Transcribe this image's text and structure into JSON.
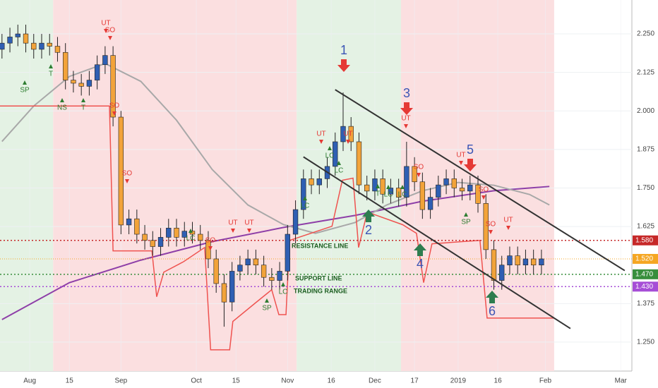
{
  "chart_data": {
    "type": "candlestick",
    "xlim": [
      -7.5,
      151.8
    ],
    "ylim": [
      1.156,
      2.36
    ],
    "xticks": [
      {
        "value": 0,
        "label": "Aug"
      },
      {
        "value": 10,
        "label": "15"
      },
      {
        "value": 23,
        "label": "Sep"
      },
      {
        "value": 42,
        "label": "Oct"
      },
      {
        "value": 52,
        "label": "15"
      },
      {
        "value": 65,
        "label": "Nov"
      },
      {
        "value": 76,
        "label": "16"
      },
      {
        "value": 87,
        "label": "Dec"
      },
      {
        "value": 97,
        "label": "17"
      },
      {
        "value": 108,
        "label": "2019"
      },
      {
        "value": 118,
        "label": "16"
      },
      {
        "value": 130,
        "label": "Feb"
      },
      {
        "value": 149,
        "label": "Mar"
      }
    ],
    "yticks": [
      {
        "value": 1.25,
        "label": "1.250"
      },
      {
        "value": 1.375,
        "label": "1.375"
      },
      {
        "value": 1.625,
        "label": "1.625"
      },
      {
        "value": 1.75,
        "label": "1.750"
      },
      {
        "value": 1.875,
        "label": "1.875"
      },
      {
        "value": 2.0,
        "label": "2.000"
      },
      {
        "value": 2.125,
        "label": "2.125"
      },
      {
        "value": 2.25,
        "label": "2.250"
      }
    ],
    "up_color": "#2f5fb3",
    "down_color": "#f2a33a",
    "x": [
      -7,
      -5,
      -3,
      -1,
      1,
      3,
      5,
      7,
      9,
      11,
      13,
      15,
      17,
      19,
      21,
      23,
      25,
      27,
      29,
      31,
      33,
      35,
      37,
      39,
      41,
      43,
      45,
      47,
      49,
      51,
      53,
      55,
      57,
      59,
      61,
      63,
      65,
      67,
      69,
      71,
      73,
      75,
      77,
      79,
      81,
      83,
      85,
      87,
      89,
      91,
      93,
      95,
      97,
      99,
      101,
      103,
      105,
      107,
      109,
      111,
      113,
      115,
      117,
      119,
      121,
      123,
      125,
      127,
      129
    ],
    "open": [
      2.2,
      2.22,
      2.24,
      2.25,
      2.22,
      2.2,
      2.22,
      2.21,
      2.19,
      2.1,
      2.09,
      2.08,
      2.1,
      2.15,
      2.18,
      1.98,
      1.63,
      1.65,
      1.6,
      1.58,
      1.56,
      1.59,
      1.62,
      1.59,
      1.61,
      1.6,
      1.58,
      1.52,
      1.44,
      1.38,
      1.48,
      1.5,
      1.52,
      1.5,
      1.46,
      1.45,
      1.48,
      1.6,
      1.68,
      1.78,
      1.76,
      1.78,
      1.82,
      1.9,
      1.95,
      1.9,
      1.76,
      1.74,
      1.78,
      1.73,
      1.75,
      1.72,
      1.82,
      1.77,
      1.68,
      1.72,
      1.76,
      1.78,
      1.75,
      1.74,
      1.76,
      1.7,
      1.55,
      1.45,
      1.5,
      1.53,
      1.5,
      1.52,
      1.5
    ],
    "high": [
      2.25,
      2.27,
      2.28,
      2.28,
      2.25,
      2.25,
      2.25,
      2.24,
      2.22,
      2.13,
      2.12,
      2.13,
      2.18,
      2.21,
      2.21,
      2.0,
      1.68,
      1.68,
      1.63,
      1.61,
      1.62,
      1.65,
      1.65,
      1.64,
      1.64,
      1.63,
      1.61,
      1.55,
      1.47,
      1.51,
      1.53,
      1.55,
      1.55,
      1.53,
      1.49,
      1.51,
      1.63,
      1.71,
      1.81,
      1.81,
      1.81,
      1.85,
      1.93,
      2.06,
      1.98,
      1.93,
      1.79,
      1.81,
      1.81,
      1.78,
      1.78,
      1.9,
      1.85,
      1.8,
      1.75,
      1.79,
      1.81,
      1.81,
      1.78,
      1.79,
      1.79,
      1.73,
      1.58,
      1.53,
      1.56,
      1.56,
      1.55,
      1.55,
      1.55
    ],
    "low": [
      2.17,
      2.19,
      2.21,
      2.19,
      2.17,
      2.17,
      2.18,
      2.16,
      2.07,
      2.06,
      2.05,
      2.05,
      2.07,
      2.12,
      1.95,
      1.6,
      1.6,
      1.57,
      1.55,
      1.53,
      1.53,
      1.56,
      1.56,
      1.56,
      1.57,
      1.55,
      1.49,
      1.41,
      1.3,
      1.35,
      1.45,
      1.47,
      1.47,
      1.43,
      1.42,
      1.42,
      1.45,
      1.57,
      1.65,
      1.73,
      1.73,
      1.75,
      1.79,
      1.87,
      1.87,
      1.73,
      1.71,
      1.71,
      1.7,
      1.7,
      1.69,
      1.69,
      1.74,
      1.65,
      1.65,
      1.69,
      1.73,
      1.72,
      1.71,
      1.71,
      1.67,
      1.52,
      1.42,
      1.42,
      1.47,
      1.47,
      1.47,
      1.47,
      1.47
    ],
    "close": [
      2.22,
      2.24,
      2.25,
      2.22,
      2.2,
      2.22,
      2.21,
      2.19,
      2.1,
      2.09,
      2.08,
      2.1,
      2.15,
      2.18,
      1.98,
      1.63,
      1.65,
      1.6,
      1.58,
      1.56,
      1.59,
      1.62,
      1.59,
      1.61,
      1.6,
      1.58,
      1.52,
      1.44,
      1.38,
      1.48,
      1.5,
      1.52,
      1.5,
      1.46,
      1.45,
      1.48,
      1.6,
      1.68,
      1.78,
      1.76,
      1.78,
      1.82,
      1.9,
      1.95,
      1.9,
      1.76,
      1.74,
      1.78,
      1.73,
      1.75,
      1.72,
      1.82,
      1.77,
      1.68,
      1.72,
      1.76,
      1.78,
      1.75,
      1.74,
      1.76,
      1.7,
      1.55,
      1.45,
      1.5,
      1.53,
      1.5,
      1.52,
      1.5,
      1.52
    ],
    "zones": [
      {
        "start": -7.5,
        "end": 5.9,
        "color": "#e4f2e4"
      },
      {
        "start": 5.9,
        "end": 67.3,
        "color": "#fbdfe0"
      },
      {
        "start": 67.3,
        "end": 93.6,
        "color": "#e4f2e4"
      },
      {
        "start": 93.6,
        "end": 132.2,
        "color": "#fbdfe0"
      }
    ],
    "lines": [
      {
        "color": "#8e3fa8",
        "x": [
          -7,
          10,
          28,
          46,
          64,
          82,
          99,
          117,
          131
        ],
        "y": [
          1.323,
          1.443,
          1.516,
          1.576,
          1.622,
          1.661,
          1.707,
          1.741,
          1.755
        ]
      },
      {
        "color": "#a8a8a8",
        "x": [
          -7,
          1,
          10,
          19,
          28,
          37,
          46,
          55,
          64,
          72,
          82,
          90,
          99,
          108,
          117,
          126,
          131
        ],
        "y": [
          1.901,
          2.016,
          2.112,
          2.154,
          2.096,
          1.97,
          1.81,
          1.695,
          1.631,
          1.603,
          1.638,
          1.695,
          1.741,
          1.768,
          1.759,
          1.729,
          1.695
        ]
      },
      {
        "color": "#ef5350",
        "x": [
          -7.5,
          20.1,
          21.0,
          30.8,
          32.0,
          33.8,
          38.8,
          44.1,
          45.6,
          50.4,
          51.2,
          56.6,
          61.0,
          62.8,
          64.6,
          65.5,
          76.2,
          78.8,
          81.5,
          82.9,
          85.1,
          94.0,
          97.5,
          99.3,
          101.4,
          113.5,
          115.3,
          132.2
        ],
        "y": [
          2.016,
          2.016,
          1.546,
          1.546,
          1.397,
          1.477,
          1.511,
          1.557,
          1.225,
          1.225,
          1.317,
          1.374,
          1.42,
          1.339,
          1.339,
          1.58,
          1.626,
          1.775,
          1.782,
          1.557,
          1.672,
          1.631,
          1.603,
          1.443,
          1.569,
          1.58,
          1.328,
          1.328
        ]
      }
    ],
    "trendlines": [
      {
        "x": [
          77,
          150
        ],
        "y": [
          2.069,
          1.482
        ]
      },
      {
        "x": [
          69,
          136.3
        ],
        "y": [
          1.851,
          1.294
        ]
      }
    ],
    "levels": [
      {
        "value": 1.58,
        "label": "1.580",
        "color": "#c62828"
      },
      {
        "value": 1.52,
        "label": "1.520",
        "color": "#f5a623"
      },
      {
        "value": 1.47,
        "label": "1.470",
        "color": "#388e3c"
      },
      {
        "value": 1.43,
        "label": "1.430",
        "color": "#a64dd6"
      }
    ],
    "notes": [
      "RESISTANCE LINE",
      "SUPPORT LINE",
      "TRADING RANGE"
    ],
    "waves": [
      "1",
      "2",
      "3",
      "4",
      "5",
      "6"
    ],
    "signals": [
      "SP",
      "T",
      "NS",
      "T",
      "UT",
      "SO",
      "SO",
      "SO",
      "LC",
      "SO",
      "UT",
      "UT",
      "SP",
      "LC",
      "LC",
      "UT",
      "LC",
      "UT",
      "LC",
      "T",
      "LC",
      "UT",
      "LC",
      "SO",
      "UT",
      "SP",
      "SO",
      "SO",
      "UT"
    ]
  }
}
